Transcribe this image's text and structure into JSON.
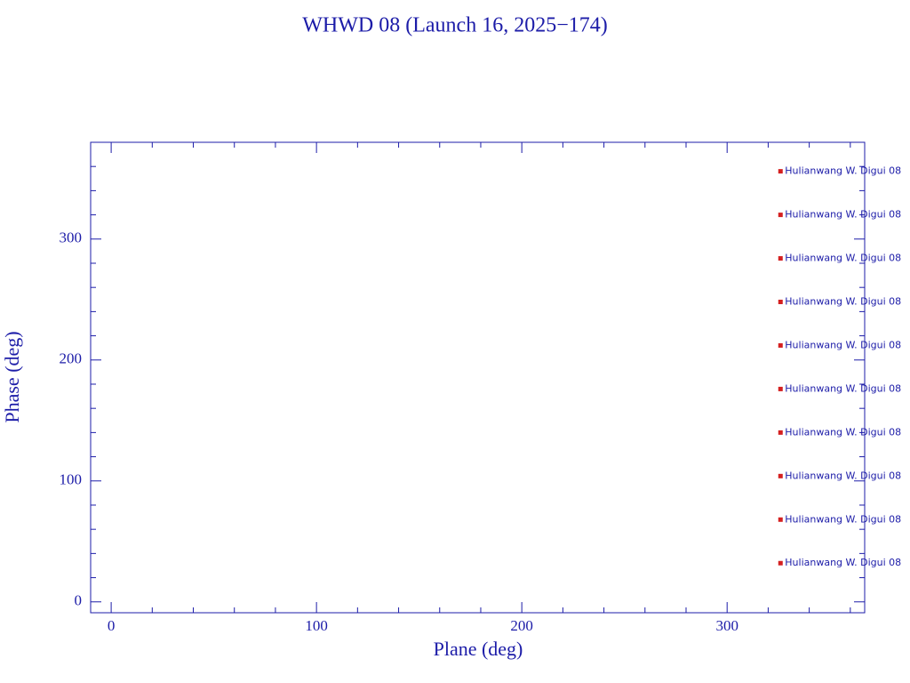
{
  "chart_data": {
    "type": "scatter",
    "title": "WHWD 08 (Launch 16, 2025−174)",
    "x_label": "Plane (deg)",
    "y_label": "Phase (deg)",
    "series": [
      {
        "color": "#d42020",
        "x": [
          326,
          326,
          326,
          326,
          326,
          326,
          326,
          326,
          326,
          326
        ],
        "values": [
          356,
          320,
          284,
          248,
          212,
          176,
          140,
          104,
          68,
          32
        ],
        "labels": [
          "Hulianwang W. Digui 08",
          "Hulianwang W. Digui 08",
          "Hulianwang W. Digui 08",
          "Hulianwang W. Digui 08",
          "Hulianwang W. Digui 08",
          "Hulianwang W. Digui 08",
          "Hulianwang W. Digui 08",
          "Hulianwang W. Digui 08",
          "Hulianwang W. Digui 08",
          "Hulianwang W. Digui 08"
        ]
      }
    ],
    "xlim": [
      -10,
      367
    ],
    "ylim": [
      -9,
      380
    ],
    "xticks": [
      0,
      100,
      200,
      300
    ],
    "yticks": [
      0,
      100,
      200,
      300
    ],
    "xminorticks": [
      20,
      40,
      60,
      80,
      120,
      140,
      160,
      180,
      220,
      240,
      260,
      280,
      320,
      340,
      360
    ],
    "yminorticks": [
      20,
      40,
      60,
      80,
      120,
      140,
      160,
      180,
      220,
      240,
      260,
      280,
      320,
      340,
      360
    ],
    "axis_color": "#1c1ca8"
  }
}
